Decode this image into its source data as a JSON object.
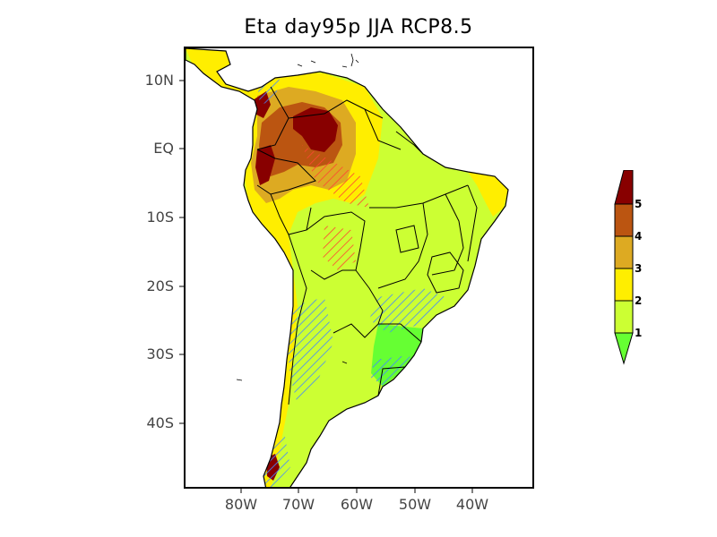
{
  "title": "Eta  day95p JJA RCP8.5",
  "axes": {
    "lat_ticks": [
      "10N",
      "EQ",
      "10S",
      "20S",
      "30S",
      "40S"
    ],
    "lon_ticks": [
      "80W",
      "70W",
      "60W",
      "50W",
      "40W"
    ]
  },
  "colorbar": {
    "labels": [
      "1",
      "2",
      "3",
      "4",
      "5"
    ],
    "colors": {
      "below_1": "#66ff33",
      "1_2": "#ccff33",
      "2_3": "#ffee00",
      "3_4": "#ddaa22",
      "4_5": "#bb5511",
      "above_5": "#880000"
    }
  },
  "hatch_colors": {
    "red": "#ff4433",
    "blue": "#4488ff"
  }
}
